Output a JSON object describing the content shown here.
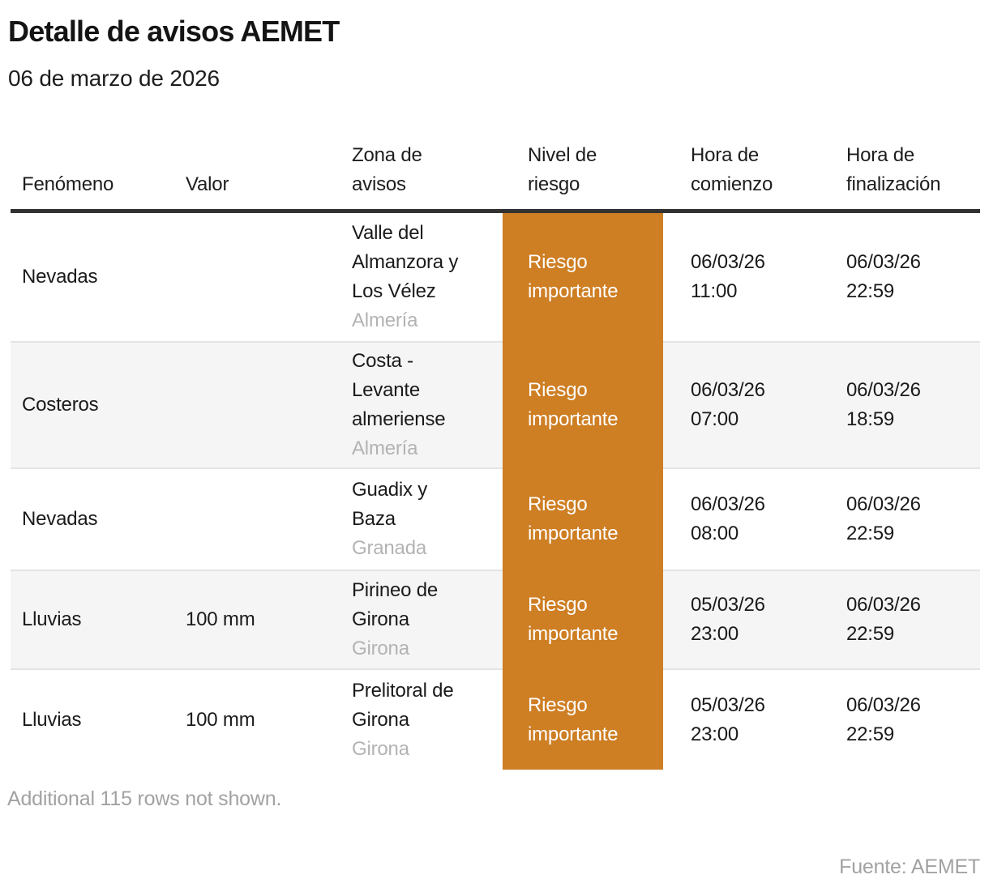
{
  "page": {
    "title": "Detalle de avisos AEMET",
    "subtitle": "06 de marzo de 2026",
    "note": "Additional 115 rows not shown.",
    "source": "Fuente: AEMET"
  },
  "colors": {
    "risk_badge_bg": "#ce7e23",
    "risk_badge_text": "#ffffff",
    "header_rule": "#323232",
    "alt_row_bg": "#f5f5f5",
    "muted_text": "#a2a2a2",
    "province_text": "#b3b3b3"
  },
  "table": {
    "columns": [
      {
        "id": "fenomeno",
        "label": "Fenómeno"
      },
      {
        "id": "valor",
        "label": "Valor"
      },
      {
        "id": "zona",
        "label": "Zona de avisos"
      },
      {
        "id": "nivel",
        "label": "Nivel de riesgo"
      },
      {
        "id": "comienzo",
        "label": "Hora de comienzo"
      },
      {
        "id": "finalizacion",
        "label": "Hora de finalización"
      }
    ],
    "rows": [
      {
        "fenomeno": "Nevadas",
        "valor": "",
        "zona": "Valle del Almanzora y Los Vélez",
        "provincia": "Almería",
        "nivel": "Riesgo importante",
        "comienzo": "06/03/26 11:00",
        "fin": "06/03/26 22:59"
      },
      {
        "fenomeno": "Costeros",
        "valor": "",
        "zona": "Costa - Levante almeriense",
        "provincia": "Almería",
        "nivel": "Riesgo importante",
        "comienzo": "06/03/26 07:00",
        "fin": "06/03/26 18:59"
      },
      {
        "fenomeno": "Nevadas",
        "valor": "",
        "zona": "Guadix y Baza",
        "provincia": "Granada",
        "nivel": "Riesgo importante",
        "comienzo": "06/03/26 08:00",
        "fin": "06/03/26 22:59"
      },
      {
        "fenomeno": "Lluvias",
        "valor": "100 mm",
        "zona": "Pirineo de Girona",
        "provincia": "Girona",
        "nivel": "Riesgo importante",
        "comienzo": "05/03/26 23:00",
        "fin": "06/03/26 22:59"
      },
      {
        "fenomeno": "Lluvias",
        "valor": "100 mm",
        "zona": "Prelitoral de Girona",
        "provincia": "Girona",
        "nivel": "Riesgo importante",
        "comienzo": "05/03/26 23:00",
        "fin": "06/03/26 22:59"
      }
    ]
  },
  "chart_data": {
    "type": "table",
    "title": "Detalle de avisos AEMET",
    "subtitle": "06 de marzo de 2026",
    "columns": [
      "Fenómeno",
      "Valor",
      "Zona de avisos",
      "Nivel de riesgo",
      "Hora de comienzo",
      "Hora de finalización"
    ],
    "rows": [
      [
        "Nevadas",
        "",
        "Valle del Almanzora y Los Vélez (Almería)",
        "Riesgo importante",
        "06/03/26 11:00",
        "06/03/26 22:59"
      ],
      [
        "Costeros",
        "",
        "Costa - Levante almeriense (Almería)",
        "Riesgo importante",
        "06/03/26 07:00",
        "06/03/26 18:59"
      ],
      [
        "Nevadas",
        "",
        "Guadix y Baza (Granada)",
        "Riesgo importante",
        "06/03/26 08:00",
        "06/03/26 22:59"
      ],
      [
        "Lluvias",
        "100 mm",
        "Pirineo de Girona (Girona)",
        "Riesgo importante",
        "05/03/26 23:00",
        "06/03/26 22:59"
      ],
      [
        "Lluvias",
        "100 mm",
        "Prelitoral de Girona (Girona)",
        "Riesgo importante",
        "05/03/26 23:00",
        "06/03/26 22:59"
      ]
    ],
    "notes": [
      "Additional 115 rows not shown.",
      "Fuente: AEMET"
    ],
    "highlight_column": "Nivel de riesgo",
    "highlight_color": "#ce7e23"
  }
}
